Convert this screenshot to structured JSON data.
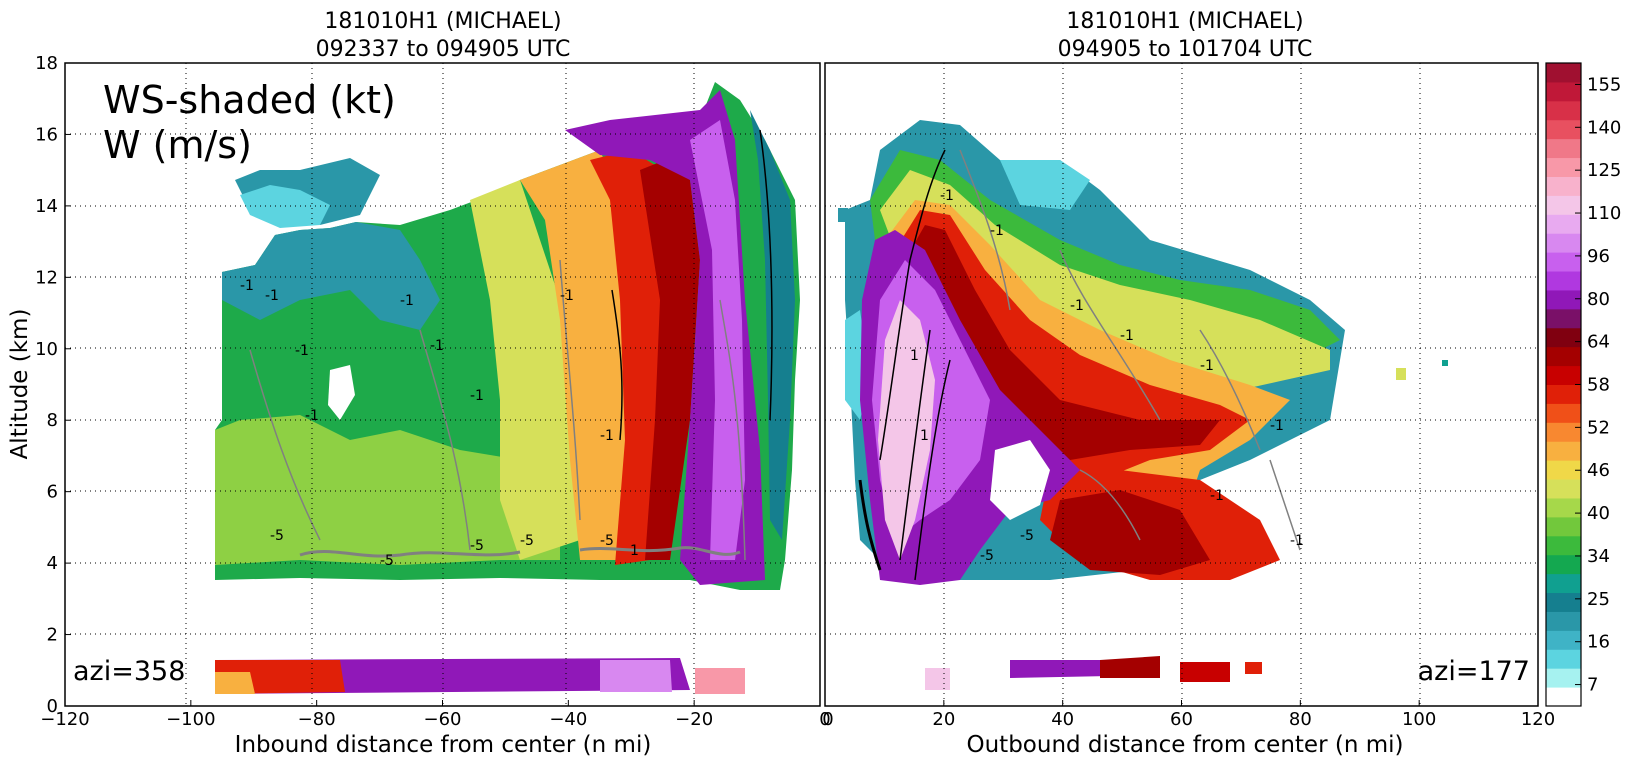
{
  "figure": {
    "overlay_lines": [
      "WS-shaded (kt)",
      "W (m/s)"
    ],
    "ylabel": "Altitude (km)"
  },
  "chart_data": [
    {
      "type": "heatmap",
      "panel": "left",
      "title_lines": [
        "181010H1 (MICHAEL)",
        "092337 to 094905 UTC"
      ],
      "xlabel": "Inbound distance from center (n mi)",
      "ylabel": "Altitude (km)",
      "xlim": [
        -120,
        0
      ],
      "ylim": [
        0,
        18
      ],
      "x_ticks": [
        -120,
        -100,
        -80,
        -60,
        -40,
        -20,
        0
      ],
      "y_ticks": [
        0,
        2,
        4,
        6,
        8,
        10,
        12,
        14,
        16,
        18
      ],
      "annotation": "azi=358",
      "grid": true,
      "contour_labels": [
        "-1",
        "-1",
        "-1",
        "-1",
        "-1",
        "-1",
        "-1",
        "-1",
        "-5",
        "-5",
        "-5",
        "-5",
        "-5",
        "1",
        "-1"
      ]
    },
    {
      "type": "heatmap",
      "panel": "right",
      "title_lines": [
        "181010H1 (MICHAEL)",
        "094905 to 101704 UTC"
      ],
      "xlabel": "Outbound distance from center (n mi)",
      "xlim": [
        0,
        120
      ],
      "ylim": [
        0,
        18
      ],
      "x_ticks": [
        0,
        20,
        40,
        60,
        80,
        100,
        120
      ],
      "annotation": "azi=177",
      "grid": true,
      "contour_labels": [
        "-1",
        "-1",
        "-1",
        "-1",
        "-1",
        "-1",
        "-1",
        "1",
        "1",
        "-5",
        "-5",
        "-1"
      ]
    }
  ],
  "colorbar": {
    "label": "WS-shaded (kt)",
    "tick_labels": [
      "7",
      "16",
      "25",
      "34",
      "40",
      "46",
      "52",
      "58",
      "64",
      "80",
      "96",
      "110",
      "125",
      "140",
      "155"
    ],
    "colors": [
      "#ffffff",
      "#a6f2f0",
      "#5cd4e0",
      "#3fb3c6",
      "#2a97a8",
      "#157f8f",
      "#10a090",
      "#14a850",
      "#3cba3c",
      "#72c83c",
      "#a6d84a",
      "#d6e05a",
      "#f0d848",
      "#f8b040",
      "#f88830",
      "#f05018",
      "#e02008",
      "#c80000",
      "#a40000",
      "#800010",
      "#7a1068",
      "#9018b8",
      "#b038e0",
      "#c860ee",
      "#d888f0",
      "#e8aaf0",
      "#f4c6e8",
      "#f8b2cc",
      "#f898a8",
      "#f07888",
      "#e85060",
      "#d83048",
      "#c01838",
      "#a01030"
    ]
  }
}
